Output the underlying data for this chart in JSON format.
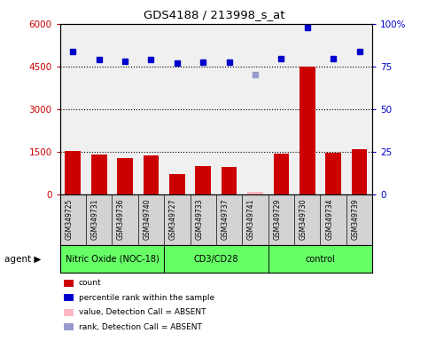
{
  "title": "GDS4188 / 213998_s_at",
  "samples": [
    "GSM349725",
    "GSM349731",
    "GSM349736",
    "GSM349740",
    "GSM349727",
    "GSM349733",
    "GSM349737",
    "GSM349741",
    "GSM349729",
    "GSM349730",
    "GSM349734",
    "GSM349739"
  ],
  "bar_values": [
    1530,
    1400,
    1280,
    1370,
    700,
    1000,
    950,
    80,
    1430,
    4500,
    1450,
    1600
  ],
  "bar_absent": [
    false,
    false,
    false,
    false,
    false,
    false,
    false,
    true,
    false,
    false,
    false,
    false
  ],
  "rank_values": [
    84,
    79,
    78,
    79,
    77,
    77.5,
    77.3,
    70,
    79.5,
    98,
    79.5,
    84
  ],
  "rank_absent": [
    false,
    false,
    false,
    false,
    false,
    false,
    false,
    true,
    false,
    false,
    false,
    false
  ],
  "ylim_left": [
    0,
    6000
  ],
  "ylim_right": [
    0,
    100
  ],
  "yticks_left": [
    0,
    1500,
    3000,
    4500,
    6000
  ],
  "yticks_right": [
    0,
    25,
    50,
    75,
    100
  ],
  "groups": [
    {
      "label": "Nitric Oxide (NOC-18)",
      "start": 0,
      "end": 4
    },
    {
      "label": "CD3/CD28",
      "start": 4,
      "end": 8
    },
    {
      "label": "control",
      "start": 8,
      "end": 12
    }
  ],
  "group_color": "#66FF66",
  "bar_color_normal": "#CC0000",
  "bar_color_absent": "#FFB6C1",
  "rank_color_normal": "#0000CC",
  "rank_color_absent": "#9999CC",
  "sample_bg_color": "#D3D3D3",
  "plot_bg": "#F0F0F0",
  "legend_items": [
    {
      "color": "#CC0000",
      "label": "count"
    },
    {
      "color": "#0000CC",
      "label": "percentile rank within the sample"
    },
    {
      "color": "#FFB6C1",
      "label": "value, Detection Call = ABSENT"
    },
    {
      "color": "#9999CC",
      "label": "rank, Detection Call = ABSENT"
    }
  ]
}
